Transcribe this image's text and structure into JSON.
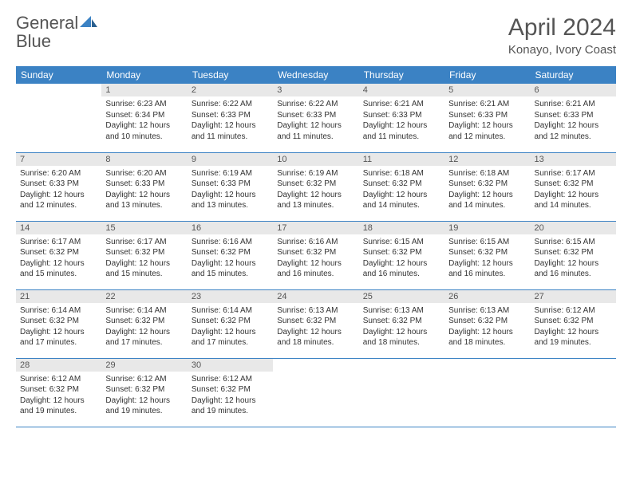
{
  "brand": {
    "word1": "General",
    "word2": "Blue"
  },
  "title": "April 2024",
  "location": "Konayo, Ivory Coast",
  "colors": {
    "header_bg": "#3b82c4",
    "header_text": "#ffffff",
    "daynum_bg": "#e8e8e8",
    "border": "#3b82c4",
    "text": "#333333",
    "title_text": "#555555"
  },
  "weekdays": [
    "Sunday",
    "Monday",
    "Tuesday",
    "Wednesday",
    "Thursday",
    "Friday",
    "Saturday"
  ],
  "grid": [
    [
      null,
      {
        "n": "1",
        "sr": "Sunrise: 6:23 AM",
        "ss": "Sunset: 6:34 PM",
        "dl": "Daylight: 12 hours and 10 minutes."
      },
      {
        "n": "2",
        "sr": "Sunrise: 6:22 AM",
        "ss": "Sunset: 6:33 PM",
        "dl": "Daylight: 12 hours and 11 minutes."
      },
      {
        "n": "3",
        "sr": "Sunrise: 6:22 AM",
        "ss": "Sunset: 6:33 PM",
        "dl": "Daylight: 12 hours and 11 minutes."
      },
      {
        "n": "4",
        "sr": "Sunrise: 6:21 AM",
        "ss": "Sunset: 6:33 PM",
        "dl": "Daylight: 12 hours and 11 minutes."
      },
      {
        "n": "5",
        "sr": "Sunrise: 6:21 AM",
        "ss": "Sunset: 6:33 PM",
        "dl": "Daylight: 12 hours and 12 minutes."
      },
      {
        "n": "6",
        "sr": "Sunrise: 6:21 AM",
        "ss": "Sunset: 6:33 PM",
        "dl": "Daylight: 12 hours and 12 minutes."
      }
    ],
    [
      {
        "n": "7",
        "sr": "Sunrise: 6:20 AM",
        "ss": "Sunset: 6:33 PM",
        "dl": "Daylight: 12 hours and 12 minutes."
      },
      {
        "n": "8",
        "sr": "Sunrise: 6:20 AM",
        "ss": "Sunset: 6:33 PM",
        "dl": "Daylight: 12 hours and 13 minutes."
      },
      {
        "n": "9",
        "sr": "Sunrise: 6:19 AM",
        "ss": "Sunset: 6:33 PM",
        "dl": "Daylight: 12 hours and 13 minutes."
      },
      {
        "n": "10",
        "sr": "Sunrise: 6:19 AM",
        "ss": "Sunset: 6:32 PM",
        "dl": "Daylight: 12 hours and 13 minutes."
      },
      {
        "n": "11",
        "sr": "Sunrise: 6:18 AM",
        "ss": "Sunset: 6:32 PM",
        "dl": "Daylight: 12 hours and 14 minutes."
      },
      {
        "n": "12",
        "sr": "Sunrise: 6:18 AM",
        "ss": "Sunset: 6:32 PM",
        "dl": "Daylight: 12 hours and 14 minutes."
      },
      {
        "n": "13",
        "sr": "Sunrise: 6:17 AM",
        "ss": "Sunset: 6:32 PM",
        "dl": "Daylight: 12 hours and 14 minutes."
      }
    ],
    [
      {
        "n": "14",
        "sr": "Sunrise: 6:17 AM",
        "ss": "Sunset: 6:32 PM",
        "dl": "Daylight: 12 hours and 15 minutes."
      },
      {
        "n": "15",
        "sr": "Sunrise: 6:17 AM",
        "ss": "Sunset: 6:32 PM",
        "dl": "Daylight: 12 hours and 15 minutes."
      },
      {
        "n": "16",
        "sr": "Sunrise: 6:16 AM",
        "ss": "Sunset: 6:32 PM",
        "dl": "Daylight: 12 hours and 15 minutes."
      },
      {
        "n": "17",
        "sr": "Sunrise: 6:16 AM",
        "ss": "Sunset: 6:32 PM",
        "dl": "Daylight: 12 hours and 16 minutes."
      },
      {
        "n": "18",
        "sr": "Sunrise: 6:15 AM",
        "ss": "Sunset: 6:32 PM",
        "dl": "Daylight: 12 hours and 16 minutes."
      },
      {
        "n": "19",
        "sr": "Sunrise: 6:15 AM",
        "ss": "Sunset: 6:32 PM",
        "dl": "Daylight: 12 hours and 16 minutes."
      },
      {
        "n": "20",
        "sr": "Sunrise: 6:15 AM",
        "ss": "Sunset: 6:32 PM",
        "dl": "Daylight: 12 hours and 16 minutes."
      }
    ],
    [
      {
        "n": "21",
        "sr": "Sunrise: 6:14 AM",
        "ss": "Sunset: 6:32 PM",
        "dl": "Daylight: 12 hours and 17 minutes."
      },
      {
        "n": "22",
        "sr": "Sunrise: 6:14 AM",
        "ss": "Sunset: 6:32 PM",
        "dl": "Daylight: 12 hours and 17 minutes."
      },
      {
        "n": "23",
        "sr": "Sunrise: 6:14 AM",
        "ss": "Sunset: 6:32 PM",
        "dl": "Daylight: 12 hours and 17 minutes."
      },
      {
        "n": "24",
        "sr": "Sunrise: 6:13 AM",
        "ss": "Sunset: 6:32 PM",
        "dl": "Daylight: 12 hours and 18 minutes."
      },
      {
        "n": "25",
        "sr": "Sunrise: 6:13 AM",
        "ss": "Sunset: 6:32 PM",
        "dl": "Daylight: 12 hours and 18 minutes."
      },
      {
        "n": "26",
        "sr": "Sunrise: 6:13 AM",
        "ss": "Sunset: 6:32 PM",
        "dl": "Daylight: 12 hours and 18 minutes."
      },
      {
        "n": "27",
        "sr": "Sunrise: 6:12 AM",
        "ss": "Sunset: 6:32 PM",
        "dl": "Daylight: 12 hours and 19 minutes."
      }
    ],
    [
      {
        "n": "28",
        "sr": "Sunrise: 6:12 AM",
        "ss": "Sunset: 6:32 PM",
        "dl": "Daylight: 12 hours and 19 minutes."
      },
      {
        "n": "29",
        "sr": "Sunrise: 6:12 AM",
        "ss": "Sunset: 6:32 PM",
        "dl": "Daylight: 12 hours and 19 minutes."
      },
      {
        "n": "30",
        "sr": "Sunrise: 6:12 AM",
        "ss": "Sunset: 6:32 PM",
        "dl": "Daylight: 12 hours and 19 minutes."
      },
      null,
      null,
      null,
      null
    ]
  ]
}
